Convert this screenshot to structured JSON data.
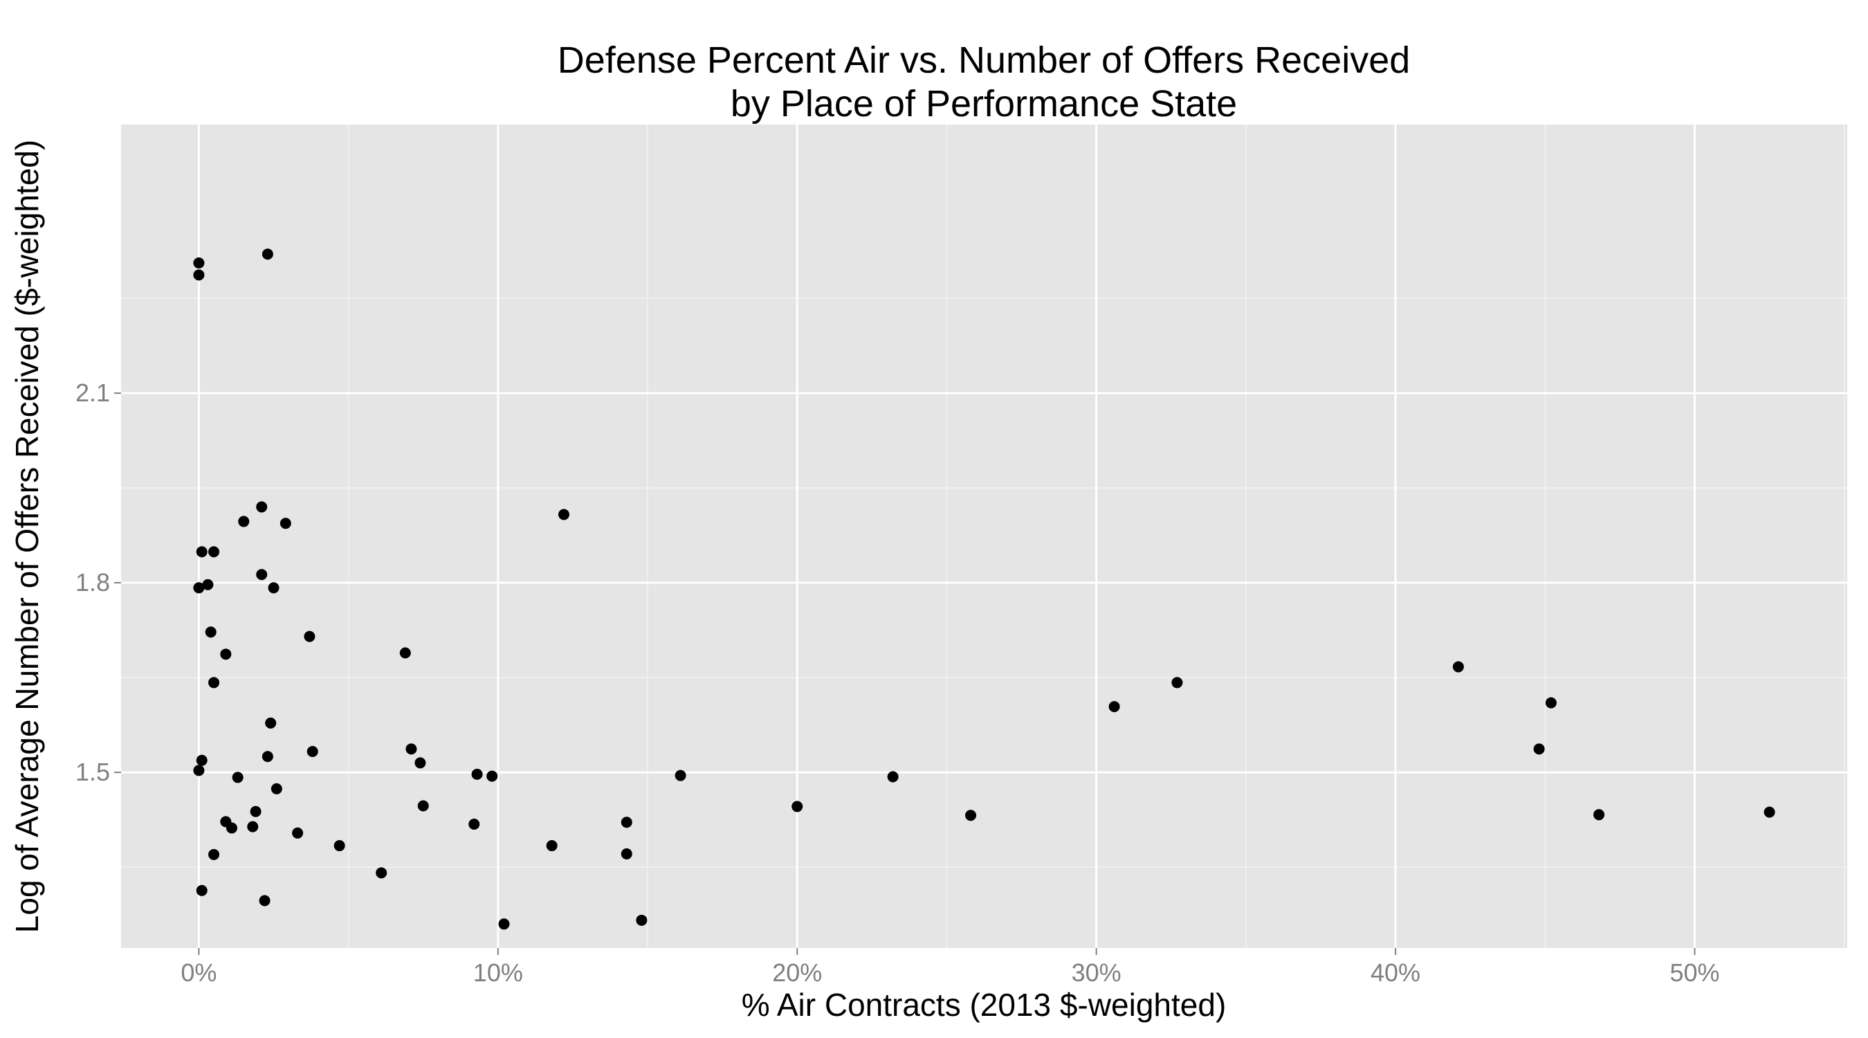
{
  "chart_data": {
    "type": "scatter",
    "title": "Defense Percent Air vs. Number of Offers Received",
    "subtitle": "by Place of Performance State",
    "xlabel": "% Air Contracts (2013 $-weighted)",
    "ylabel": "Log of Average Number of Offers Received ($-weighted)",
    "xlim": [
      -0.026,
      0.551
    ],
    "ylim": [
      1.222,
      2.525
    ],
    "x_ticks": [
      0,
      0.1,
      0.2,
      0.3,
      0.4,
      0.5
    ],
    "x_tick_labels": [
      "0%",
      "10%",
      "20%",
      "30%",
      "40%",
      "50%"
    ],
    "y_ticks": [
      1.5,
      1.8,
      2.1
    ],
    "y_tick_labels": [
      "1.5",
      "1.8",
      "2.1"
    ],
    "grid": true,
    "colors": {
      "panel": "#e5e5e5",
      "grid_major": "#ffffff",
      "grid_minor": "#f2f2f2",
      "point": "#000000",
      "tick_label": "#7f7f7f"
    },
    "points": [
      {
        "x": 0.0,
        "y": 2.306
      },
      {
        "x": 0.0,
        "y": 2.287
      },
      {
        "x": 0.023,
        "y": 2.32
      },
      {
        "x": 0.021,
        "y": 1.92
      },
      {
        "x": 0.015,
        "y": 1.897
      },
      {
        "x": 0.029,
        "y": 1.894
      },
      {
        "x": 0.122,
        "y": 1.908
      },
      {
        "x": 0.001,
        "y": 1.849
      },
      {
        "x": 0.005,
        "y": 1.849
      },
      {
        "x": 0.021,
        "y": 1.813
      },
      {
        "x": 0.0,
        "y": 1.792
      },
      {
        "x": 0.003,
        "y": 1.797
      },
      {
        "x": 0.025,
        "y": 1.792
      },
      {
        "x": 0.004,
        "y": 1.722
      },
      {
        "x": 0.037,
        "y": 1.715
      },
      {
        "x": 0.069,
        "y": 1.689
      },
      {
        "x": 0.009,
        "y": 1.687
      },
      {
        "x": 0.005,
        "y": 1.642
      },
      {
        "x": 0.024,
        "y": 1.578
      },
      {
        "x": 0.071,
        "y": 1.537
      },
      {
        "x": 0.038,
        "y": 1.533
      },
      {
        "x": 0.023,
        "y": 1.525
      },
      {
        "x": 0.001,
        "y": 1.519
      },
      {
        "x": 0.074,
        "y": 1.515
      },
      {
        "x": 0.0,
        "y": 1.503
      },
      {
        "x": 0.013,
        "y": 1.492
      },
      {
        "x": 0.093,
        "y": 1.497
      },
      {
        "x": 0.098,
        "y": 1.494
      },
      {
        "x": 0.161,
        "y": 1.495
      },
      {
        "x": 0.232,
        "y": 1.493
      },
      {
        "x": 0.026,
        "y": 1.474
      },
      {
        "x": 0.075,
        "y": 1.447
      },
      {
        "x": 0.019,
        "y": 1.438
      },
      {
        "x": 0.2,
        "y": 1.446
      },
      {
        "x": 0.009,
        "y": 1.422
      },
      {
        "x": 0.092,
        "y": 1.418
      },
      {
        "x": 0.143,
        "y": 1.421
      },
      {
        "x": 0.011,
        "y": 1.412
      },
      {
        "x": 0.018,
        "y": 1.414
      },
      {
        "x": 0.033,
        "y": 1.404
      },
      {
        "x": 0.258,
        "y": 1.432
      },
      {
        "x": 0.047,
        "y": 1.384
      },
      {
        "x": 0.118,
        "y": 1.384
      },
      {
        "x": 0.005,
        "y": 1.37
      },
      {
        "x": 0.143,
        "y": 1.371
      },
      {
        "x": 0.061,
        "y": 1.341
      },
      {
        "x": 0.001,
        "y": 1.313
      },
      {
        "x": 0.022,
        "y": 1.297
      },
      {
        "x": 0.102,
        "y": 1.26
      },
      {
        "x": 0.148,
        "y": 1.266
      },
      {
        "x": 0.306,
        "y": 1.604
      },
      {
        "x": 0.327,
        "y": 1.642
      },
      {
        "x": 0.421,
        "y": 1.667
      },
      {
        "x": 0.452,
        "y": 1.61
      },
      {
        "x": 0.448,
        "y": 1.537
      },
      {
        "x": 0.468,
        "y": 1.433
      },
      {
        "x": 0.525,
        "y": 1.437
      }
    ]
  }
}
